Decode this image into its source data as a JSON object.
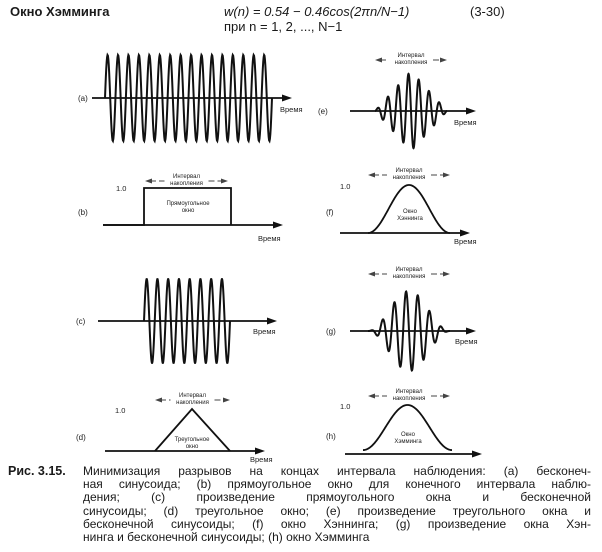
{
  "header": {
    "title": "Окно Хэмминга",
    "formula_line1": "w(n) = 0.54 − 0.46cos(2πn/N−1)",
    "formula_line2": "при n = 1, 2, ..., N−1",
    "equation_number": "(3-30)"
  },
  "figure": {
    "axis_label": "Время",
    "interval_label_1": "Интервал",
    "interval_label_2": "накопления",
    "unity_label": "1.0",
    "panels": {
      "a": {
        "label": "(a)",
        "signal": "infinite sinusoid"
      },
      "b": {
        "label": "(b)",
        "window_name_1": "Прямоугольное",
        "window_name_2": "окно"
      },
      "c": {
        "label": "(c)"
      },
      "d": {
        "label": "(d)",
        "window_name_1": "Треугольное",
        "window_name_2": "окно"
      },
      "e": {
        "label": "(e)"
      },
      "f": {
        "label": "(f)",
        "window_name_1": "Окно",
        "window_name_2": "Хэннинга"
      },
      "g": {
        "label": "(g)"
      },
      "h": {
        "label": "(h)",
        "window_name_1": "Окно",
        "window_name_2": "Хэмминга"
      }
    }
  },
  "caption": {
    "label": "Рис. 3.15.",
    "lines": [
      "Минимизация разрывов на концах интервала наблюдения: (a) бесконеч-",
      "ная синусоида; (b) прямоугольное окно для конечного интервала наблю-",
      "дения; (c) произведение прямоугольного окна и бесконечной",
      "синусоиды; (d) треугольное окно; (e) произведение треугольного окна и",
      "бесконечной синусоиды; (f) окно Хэннинга; (g) произведение окна Хэн-",
      "нинга и бесконечной синусоиды; (h) окно Хэмминга"
    ]
  }
}
